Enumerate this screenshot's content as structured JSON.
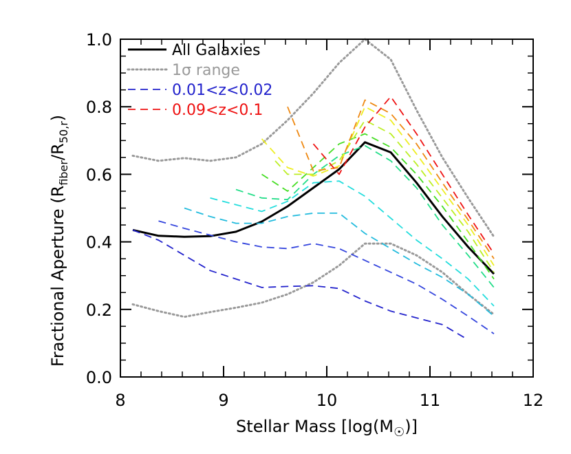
{
  "chart_data": {
    "type": "line",
    "xlabel": "Stellar Mass [log(M",
    "xlabel_sun": "☉",
    "xlabel_tail": ")]",
    "ylabel": "Fractional Aperture (R",
    "ylabel_sub1": "fiber",
    "ylabel_mid": "/R",
    "ylabel_sub2": "50,r",
    "ylabel_tail": ")",
    "xlim": [
      8,
      12
    ],
    "ylim": [
      0.0,
      1.0
    ],
    "xticks": [
      "8",
      "9",
      "10",
      "11",
      "12"
    ],
    "yticks": [
      "0.0",
      "0.2",
      "0.4",
      "0.6",
      "0.8",
      "1.0"
    ],
    "legend": {
      "position": "top-left",
      "entries": [
        {
          "name": "All Galaxies",
          "color": "#000000",
          "dash": "solid"
        },
        {
          "name": "1σ range",
          "color": "#999999",
          "dash": "dotted"
        },
        {
          "name": "0.01<z<0.02",
          "color": "#2222cc",
          "dash": "dashed"
        },
        {
          "name": "0.09<z<0.1",
          "color": "#ee1111",
          "dash": "dashed"
        }
      ]
    },
    "series": [
      {
        "name": "All Galaxies",
        "color": "#000000",
        "dash": "solid",
        "x": [
          8.12,
          8.37,
          8.62,
          8.87,
          9.12,
          9.37,
          9.62,
          9.87,
          10.12,
          10.37,
          10.62,
          10.87,
          11.12,
          11.37,
          11.62
        ],
        "y": [
          0.435,
          0.418,
          0.415,
          0.417,
          0.43,
          0.46,
          0.505,
          0.56,
          0.615,
          0.695,
          0.665,
          0.575,
          0.475,
          0.385,
          0.305
        ]
      },
      {
        "name": "1σ range",
        "color": "#999999",
        "dash": "dotted",
        "x": [
          8.12,
          8.37,
          8.62,
          8.87,
          9.12,
          9.37,
          9.62,
          9.87,
          10.12,
          10.37,
          10.62,
          10.87,
          11.12,
          11.37,
          11.62
        ],
        "y": [
          0.655,
          0.64,
          0.648,
          0.64,
          0.65,
          0.69,
          0.76,
          0.84,
          0.93,
          1.0,
          0.94,
          0.79,
          0.65,
          0.53,
          0.415
        ]
      },
      {
        "color": "#999999",
        "dash": "dotted",
        "x": [
          8.12,
          8.37,
          8.62,
          8.87,
          9.12,
          9.37,
          9.62,
          9.87,
          10.12,
          10.37,
          10.62,
          10.87,
          11.12,
          11.37,
          11.62
        ],
        "y": [
          0.215,
          0.195,
          0.178,
          0.192,
          0.205,
          0.22,
          0.245,
          0.28,
          0.33,
          0.395,
          0.395,
          0.36,
          0.31,
          0.245,
          0.185
        ]
      },
      {
        "color": "#2222cc",
        "dash": "dashed",
        "x": [
          8.12,
          8.37,
          8.62,
          8.87,
          9.12,
          9.37,
          9.62,
          9.87,
          10.12,
          10.37,
          10.62,
          10.87,
          11.12,
          11.37
        ],
        "y": [
          0.435,
          0.405,
          0.36,
          0.315,
          0.29,
          0.265,
          0.268,
          0.27,
          0.262,
          0.225,
          0.195,
          0.175,
          0.155,
          0.11
        ]
      },
      {
        "name": "0.01<z<0.02",
        "color": "#3344dd",
        "dash": "dashed",
        "x": [
          8.37,
          8.62,
          8.87,
          9.12,
          9.37,
          9.62,
          9.87,
          10.12,
          10.37,
          10.62,
          10.87,
          11.12,
          11.37,
          11.62
        ],
        "y": [
          0.462,
          0.44,
          0.42,
          0.4,
          0.385,
          0.38,
          0.395,
          0.38,
          0.345,
          0.31,
          0.275,
          0.23,
          0.18,
          0.128
        ]
      },
      {
        "color": "#22bbdd",
        "dash": "dashed",
        "x": [
          8.62,
          8.87,
          9.12,
          9.37,
          9.62,
          9.87,
          10.12,
          10.37,
          10.62,
          10.87,
          11.12,
          11.37,
          11.62
        ],
        "y": [
          0.5,
          0.475,
          0.455,
          0.455,
          0.475,
          0.485,
          0.485,
          0.425,
          0.38,
          0.335,
          0.295,
          0.245,
          0.18
        ]
      },
      {
        "color": "#22dddd",
        "dash": "dashed",
        "x": [
          8.87,
          9.12,
          9.37,
          9.62,
          9.87,
          10.12,
          10.37,
          10.62,
          10.87,
          11.12,
          11.37,
          11.62
        ],
        "y": [
          0.53,
          0.51,
          0.49,
          0.52,
          0.575,
          0.58,
          0.535,
          0.47,
          0.405,
          0.35,
          0.29,
          0.21
        ]
      },
      {
        "color": "#22dd88",
        "dash": "dashed",
        "x": [
          9.12,
          9.37,
          9.62,
          9.87,
          10.12,
          10.37,
          10.62,
          10.87,
          11.12,
          11.37,
          11.62
        ],
        "y": [
          0.555,
          0.53,
          0.525,
          0.6,
          0.655,
          0.685,
          0.64,
          0.56,
          0.45,
          0.36,
          0.265
        ]
      },
      {
        "color": "#44dd22",
        "dash": "dashed",
        "x": [
          9.37,
          9.62,
          9.87,
          10.12,
          10.37,
          10.62,
          10.87,
          11.12,
          11.37,
          11.62
        ],
        "y": [
          0.6,
          0.55,
          0.62,
          0.69,
          0.72,
          0.68,
          0.6,
          0.505,
          0.4,
          0.29
        ]
      },
      {
        "color": "#bbee22",
        "dash": "dashed",
        "x": [
          9.5,
          9.62,
          9.87,
          10.12,
          10.37,
          10.62,
          10.87,
          11.12,
          11.37,
          11.62
        ],
        "y": [
          0.64,
          0.6,
          0.6,
          0.64,
          0.76,
          0.72,
          0.63,
          0.53,
          0.43,
          0.31
        ]
      },
      {
        "color": "#eeee22",
        "dash": "dashed",
        "x": [
          9.37,
          9.62,
          9.87,
          10.12,
          10.37,
          10.62,
          10.87,
          11.12,
          11.37,
          11.62
        ],
        "y": [
          0.705,
          0.62,
          0.595,
          0.625,
          0.8,
          0.76,
          0.66,
          0.555,
          0.45,
          0.33
        ]
      },
      {
        "color": "#ee8811",
        "dash": "dashed",
        "x": [
          9.62,
          9.87,
          10.12,
          10.37,
          10.62,
          10.87,
          11.12,
          11.37,
          11.62
        ],
        "y": [
          0.8,
          0.61,
          0.62,
          0.82,
          0.78,
          0.69,
          0.575,
          0.465,
          0.35
        ]
      },
      {
        "name": "0.09<z<0.1",
        "color": "#ee1111",
        "dash": "dashed",
        "x": [
          9.87,
          10.12,
          10.37,
          10.62,
          10.87,
          11.12,
          11.37,
          11.62
        ],
        "y": [
          0.69,
          0.6,
          0.74,
          0.83,
          0.72,
          0.6,
          0.48,
          0.365
        ]
      }
    ]
  }
}
